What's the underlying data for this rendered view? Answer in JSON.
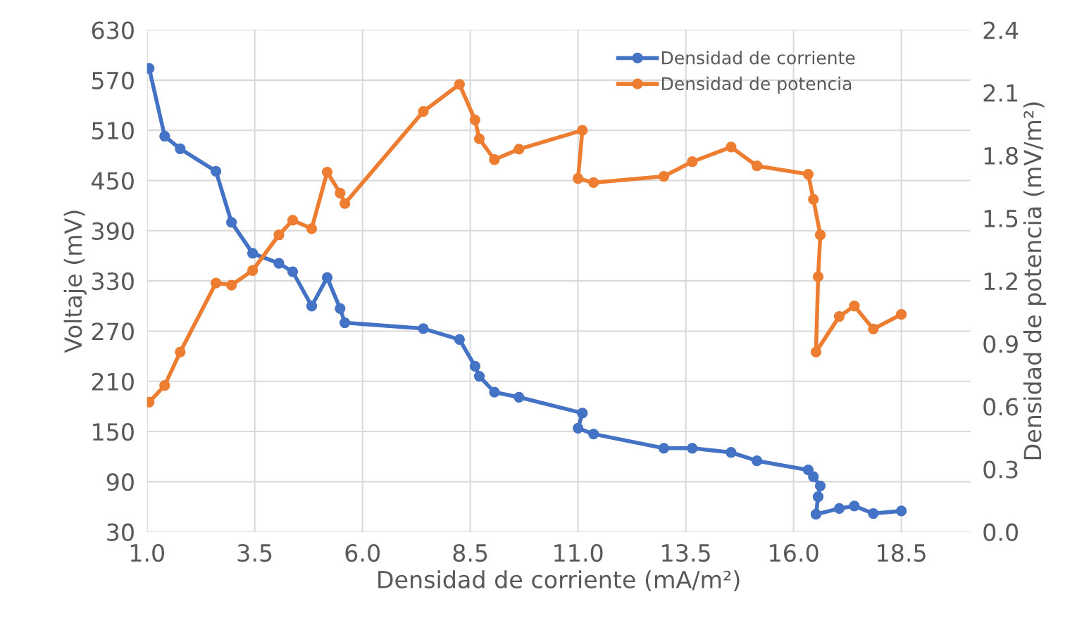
{
  "chart_data": {
    "type": "line",
    "xlabel": "Densidad de corriente (mA/m²)",
    "ylabel": "Voltaje (mV)",
    "y2label": "Densidad de potencia (mV/m²)",
    "xlim": [
      1.0,
      20.1
    ],
    "xticks": [
      {
        "value": 1.0,
        "label": "1.0"
      },
      {
        "value": 3.5,
        "label": "3.5"
      },
      {
        "value": 6.0,
        "label": "6.0"
      },
      {
        "value": 8.5,
        "label": "8.5"
      },
      {
        "value": 11.0,
        "label": "11.0"
      },
      {
        "value": 13.5,
        "label": "13.5"
      },
      {
        "value": 16.0,
        "label": "16.0"
      },
      {
        "value": 18.5,
        "label": "18.5"
      }
    ],
    "ylim": [
      30,
      630
    ],
    "yticks": [
      30,
      90,
      150,
      210,
      270,
      330,
      390,
      450,
      510,
      570,
      630
    ],
    "y2lim": [
      0.0,
      2.4
    ],
    "y2ticks": [
      {
        "value": 0.0,
        "label": "0.0"
      },
      0.3,
      0.6,
      0.9,
      1.2,
      1.5,
      1.8,
      2.1,
      2.4
    ],
    "grid": true,
    "legend": "top right",
    "marker": "circle",
    "line_style": "solid",
    "series": [
      {
        "name": "Densidad de corriente",
        "color": "#4472c4",
        "x": [
          1.05,
          1.41,
          1.77,
          2.6,
          2.96,
          3.45,
          4.06,
          4.38,
          4.82,
          5.18,
          5.48,
          5.59,
          7.41,
          8.25,
          8.61,
          8.71,
          9.06,
          9.63,
          11.1,
          11.0,
          11.36,
          12.99,
          13.65,
          14.55,
          15.15,
          16.34,
          16.46,
          16.62,
          16.57,
          16.52,
          17.06,
          17.41,
          17.85,
          18.5
        ],
        "values": [
          584,
          503,
          488,
          461,
          400,
          363,
          351,
          341,
          300,
          334,
          297,
          280,
          273,
          260,
          228,
          216,
          197,
          191,
          172,
          154,
          147,
          130,
          130,
          125,
          115,
          104,
          96,
          85,
          72,
          51,
          58,
          61,
          52,
          55
        ]
      },
      {
        "name": "Densidad de potencia",
        "color": "#ed7d31",
        "axis": "y2",
        "x": [
          1.05,
          1.41,
          1.77,
          2.6,
          2.96,
          3.45,
          4.06,
          4.38,
          4.82,
          5.18,
          5.48,
          5.59,
          7.41,
          8.25,
          8.61,
          8.71,
          9.06,
          9.63,
          11.1,
          11.0,
          11.36,
          12.99,
          13.65,
          14.55,
          15.15,
          16.34,
          16.46,
          16.62,
          16.57,
          16.52,
          17.06,
          17.41,
          17.85,
          18.5
        ],
        "values": [
          0.62,
          0.7,
          0.86,
          1.19,
          1.18,
          1.25,
          1.42,
          1.49,
          1.45,
          1.72,
          1.62,
          1.57,
          2.01,
          2.14,
          1.97,
          1.88,
          1.78,
          1.83,
          1.92,
          1.69,
          1.67,
          1.7,
          1.77,
          1.84,
          1.75,
          1.71,
          1.59,
          1.42,
          1.22,
          0.86,
          1.03,
          1.08,
          0.97,
          1.04
        ]
      }
    ]
  }
}
